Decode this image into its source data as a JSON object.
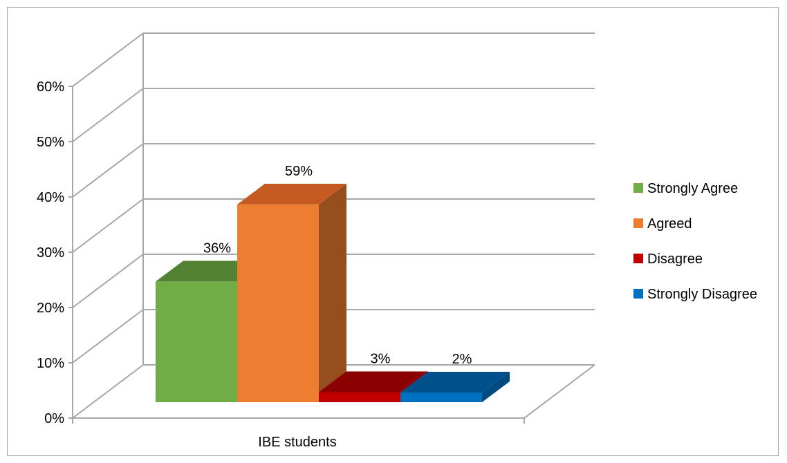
{
  "chart_data": {
    "type": "bar",
    "title": "",
    "xlabel": "",
    "ylabel": "",
    "categories": [
      "IBE students"
    ],
    "series": [
      {
        "name": "Strongly Agree",
        "values": [
          0.36
        ],
        "label": "36%",
        "color": "#70ad47",
        "top_color": "#548235",
        "side_color": "#4e7a33"
      },
      {
        "name": "Agreed",
        "values": [
          0.59
        ],
        "label": "59%",
        "color": "#ed7d31",
        "top_color": "#c55a23",
        "side_color": "#974e1e"
      },
      {
        "name": "Disagree",
        "values": [
          0.03
        ],
        "label": "3%",
        "color": "#c00000",
        "top_color": "#8b0000",
        "side_color": "#7a0000"
      },
      {
        "name": "Strongly Disagree",
        "values": [
          0.02
        ],
        "label": "2%",
        "color": "#0070c0",
        "top_color": "#00508c",
        "side_color": "#004a80"
      }
    ],
    "ylim": [
      0,
      0.6
    ],
    "yticks": [
      "0%",
      "10%",
      "20%",
      "30%",
      "40%",
      "50%",
      "60%"
    ],
    "grid": true,
    "legend_position": "right",
    "style": "3d-clustered-column"
  }
}
